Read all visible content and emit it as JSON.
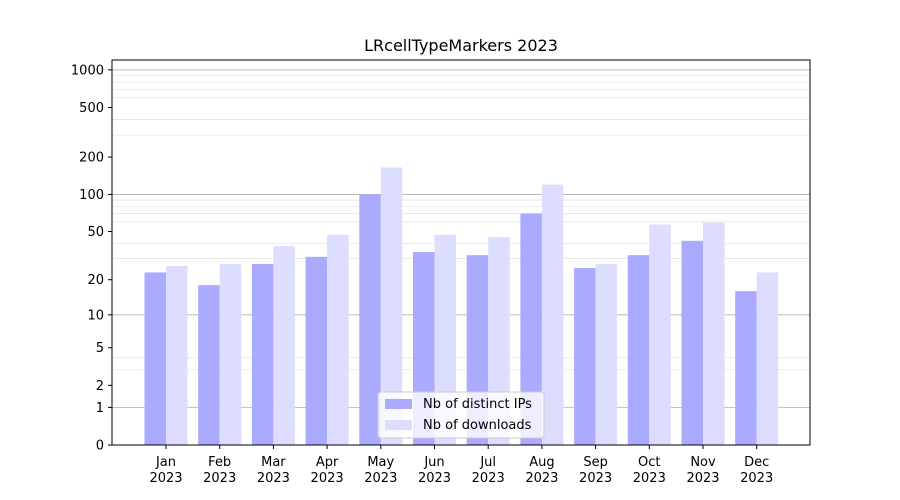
{
  "chart_data": {
    "type": "bar",
    "title": "LRcellTypeMarkers 2023",
    "xlabel": "",
    "ylabel": "",
    "y_scale": "log1p",
    "ylim": [
      0,
      1200
    ],
    "y_ticks": [
      0,
      1,
      2,
      5,
      10,
      20,
      50,
      100,
      200,
      500,
      1000
    ],
    "y_tick_labels": [
      "0",
      "1",
      "2",
      "5",
      "10",
      "20",
      "50",
      "100",
      "200",
      "500",
      "1000"
    ],
    "categories": [
      {
        "month": "Jan",
        "year": "2023"
      },
      {
        "month": "Feb",
        "year": "2023"
      },
      {
        "month": "Mar",
        "year": "2023"
      },
      {
        "month": "Apr",
        "year": "2023"
      },
      {
        "month": "May",
        "year": "2023"
      },
      {
        "month": "Jun",
        "year": "2023"
      },
      {
        "month": "Jul",
        "year": "2023"
      },
      {
        "month": "Aug",
        "year": "2023"
      },
      {
        "month": "Sep",
        "year": "2023"
      },
      {
        "month": "Oct",
        "year": "2023"
      },
      {
        "month": "Nov",
        "year": "2023"
      },
      {
        "month": "Dec",
        "year": "2023"
      }
    ],
    "series": [
      {
        "name": "Nb of distinct IPs",
        "color": "#aaaaff",
        "values": [
          23,
          18,
          27,
          31,
          100,
          34,
          32,
          70,
          25,
          32,
          42,
          16
        ]
      },
      {
        "name": "Nb of downloads",
        "color": "#ddddff",
        "values": [
          26,
          27,
          38,
          47,
          165,
          47,
          45,
          120,
          27,
          57,
          59,
          23
        ]
      }
    ],
    "grid": true,
    "legend_position": "bottom-center"
  }
}
